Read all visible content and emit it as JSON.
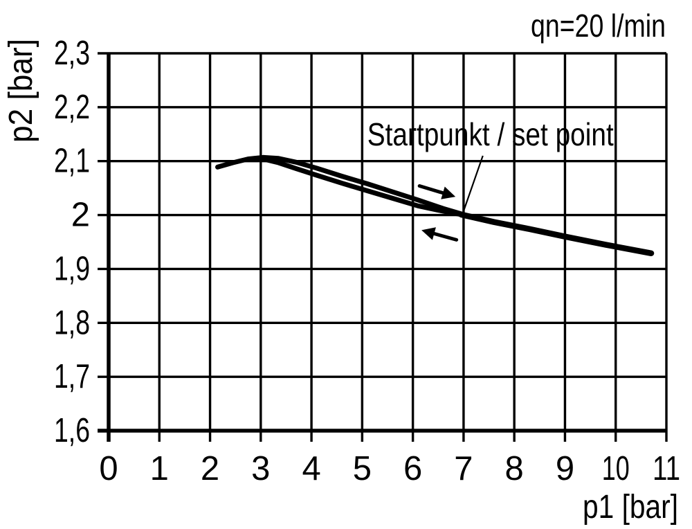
{
  "page": {
    "background": "#ffffff",
    "ink": "#000000"
  },
  "chart_data": {
    "type": "line",
    "corner_label": "qn=20 l/min",
    "xlabel": "p1 [bar]",
    "ylabel": "p2 [bar]",
    "xlim": [
      0,
      11
    ],
    "ylim": [
      1.6,
      2.3
    ],
    "x_ticks": [
      0,
      1,
      2,
      3,
      4,
      5,
      6,
      7,
      8,
      9,
      10,
      11
    ],
    "x_tick_labels": [
      "0",
      "1",
      "2",
      "3",
      "4",
      "5",
      "6",
      "7",
      "8",
      "9",
      "10",
      "11"
    ],
    "y_ticks": [
      1.6,
      1.7,
      1.8,
      1.9,
      2.0,
      2.1,
      2.2,
      2.3
    ],
    "y_tick_labels": [
      "1,6",
      "1,7",
      "1,8",
      "1,9",
      "2",
      "2,1",
      "2,2",
      "2,3"
    ],
    "grid": true,
    "decimal_style": "comma",
    "legend": "none",
    "line_color": "#000000",
    "series": [
      {
        "name": "hysteresis-upper-branch",
        "direction": "increasing-p1",
        "stroke_width": 7,
        "x": [
          2.15,
          2.45,
          2.75,
          3.05,
          3.35,
          3.7,
          4.1,
          4.6,
          5.1,
          5.6,
          6.1,
          6.6,
          7.0
        ],
        "y": [
          2.089,
          2.097,
          2.104,
          2.107,
          2.105,
          2.098,
          2.087,
          2.072,
          2.058,
          2.043,
          2.028,
          2.012,
          2.001
        ]
      },
      {
        "name": "hysteresis-lower-branch",
        "direction": "decreasing-p1",
        "stroke_width": 7,
        "x": [
          3.05,
          3.35,
          3.7,
          4.1,
          4.6,
          5.1,
          5.6,
          6.1,
          6.5,
          6.95
        ],
        "y": [
          2.104,
          2.097,
          2.086,
          2.074,
          2.059,
          2.045,
          2.031,
          2.017,
          2.009,
          2.001
        ]
      },
      {
        "name": "post-set-point-tail",
        "direction": "increasing-p1",
        "stroke_width": 8.5,
        "x": [
          6.95,
          7.6,
          8.3,
          9.0,
          9.8,
          10.7
        ],
        "y": [
          2.001,
          1.987,
          1.974,
          1.96,
          1.945,
          1.929
        ]
      }
    ],
    "arrows": [
      {
        "name": "forward-direction-arrow",
        "points_to": "right",
        "tail": [
          6.13,
          2.054
        ],
        "tip": [
          6.84,
          2.034
        ]
      },
      {
        "name": "return-direction-arrow",
        "points_to": "left",
        "tail": [
          6.86,
          1.954
        ],
        "tip": [
          6.17,
          1.972
        ]
      }
    ],
    "annotation": {
      "label": "Startpunkt / set point",
      "target": {
        "x": 7.0,
        "y": 2.0
      },
      "label_pos": {
        "x": 7.53,
        "y": 2.129
      },
      "leader": {
        "x1": 7.38,
        "y1": 2.11,
        "x2": 6.98,
        "y2": 2.002
      }
    }
  }
}
